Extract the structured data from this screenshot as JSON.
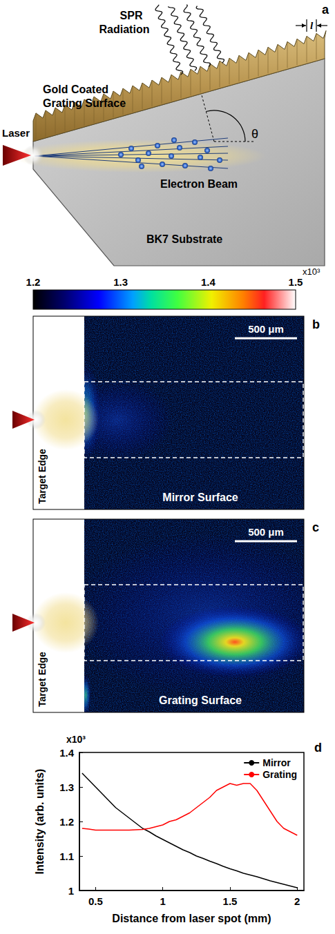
{
  "diagram": {
    "letter": "a",
    "radiation_label": [
      "SPR",
      "Radiation"
    ],
    "surface_label": [
      "Gold Coated",
      "Grating Surface"
    ],
    "laser_label": "Laser",
    "beam_label": "Electron Beam",
    "substrate_label": "BK7 Substrate",
    "period_label": "l",
    "angle_label": "θ"
  },
  "colorbar": {
    "range": [
      1.2,
      1.5
    ],
    "ticks": [
      1.2,
      1.3,
      1.4,
      1.5
    ],
    "multiplier": "x10³"
  },
  "images": [
    {
      "letter": "b",
      "scale_bar": "500 μm",
      "edge_label": "Target Edge",
      "surface_label": "Mirror Surface"
    },
    {
      "letter": "c",
      "scale_bar": "500 μm",
      "edge_label": "Target Edge",
      "surface_label": "Grating Surface"
    }
  ],
  "chart_data": {
    "type": "line",
    "letter": "d",
    "xlabel": "Distance from laser spot (mm)",
    "ylabel": "Intensity (arb. units)",
    "y_multiplier": "x10³",
    "x": [
      0.4,
      0.45,
      0.5,
      0.55,
      0.6,
      0.65,
      0.7,
      0.75,
      0.8,
      0.85,
      0.9,
      0.95,
      1.0,
      1.05,
      1.1,
      1.15,
      1.2,
      1.25,
      1.3,
      1.35,
      1.4,
      1.45,
      1.5,
      1.55,
      1.6,
      1.65,
      1.7,
      1.75,
      1.8,
      1.85,
      1.9,
      1.95,
      2.0
    ],
    "series": [
      {
        "name": "Mirror",
        "color": "#000000",
        "values": [
          1.34,
          1.32,
          1.3,
          1.28,
          1.26,
          1.24,
          1.225,
          1.21,
          1.195,
          1.18,
          1.17,
          1.158,
          1.148,
          1.138,
          1.128,
          1.118,
          1.11,
          1.1,
          1.093,
          1.085,
          1.078,
          1.07,
          1.063,
          1.057,
          1.05,
          1.045,
          1.04,
          1.034,
          1.028,
          1.023,
          1.018,
          1.013,
          1.008
        ]
      },
      {
        "name": "Grating",
        "color": "#ff0000",
        "values": [
          1.18,
          1.178,
          1.175,
          1.175,
          1.175,
          1.175,
          1.175,
          1.175,
          1.176,
          1.177,
          1.18,
          1.185,
          1.19,
          1.2,
          1.205,
          1.215,
          1.225,
          1.24,
          1.255,
          1.27,
          1.29,
          1.3,
          1.31,
          1.305,
          1.31,
          1.31,
          1.29,
          1.26,
          1.23,
          1.2,
          1.18,
          1.17,
          1.16
        ]
      }
    ],
    "xlim": [
      0.38,
      2.05
    ],
    "ylim": [
      1,
      1.4
    ],
    "xticks": [
      0.5,
      1,
      1.5,
      2
    ],
    "yticks": [
      1,
      1.1,
      1.2,
      1.3,
      1.4
    ],
    "legend": "upper right",
    "grid": false
  }
}
